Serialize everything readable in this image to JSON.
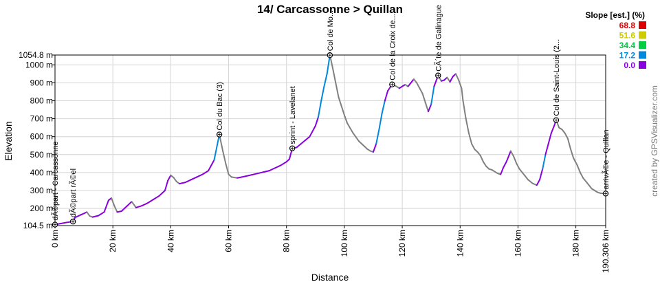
{
  "chart_data": {
    "type": "area",
    "title": "14/ Carcassonne > Quillan",
    "xlabel": "Distance",
    "ylabel": "Elevation",
    "xlim": [
      0,
      190.306
    ],
    "ylim": [
      104.5,
      1054.8
    ],
    "x_ticks": [
      {
        "value": 0,
        "label": "0 km"
      },
      {
        "value": 20,
        "label": "20 km"
      },
      {
        "value": 40,
        "label": "40 km"
      },
      {
        "value": 60,
        "label": "60 km"
      },
      {
        "value": 80,
        "label": "80 km"
      },
      {
        "value": 100,
        "label": "100 km"
      },
      {
        "value": 120,
        "label": "120 km"
      },
      {
        "value": 140,
        "label": "140 km"
      },
      {
        "value": 160,
        "label": "160 km"
      },
      {
        "value": 180,
        "label": "180 km"
      },
      {
        "value": 190.306,
        "label": "190.306 km"
      }
    ],
    "y_ticks": [
      {
        "value": 104.5,
        "label": "104.5 m"
      },
      {
        "value": 200,
        "label": "200 m"
      },
      {
        "value": 300,
        "label": "300 m"
      },
      {
        "value": 400,
        "label": "400 m"
      },
      {
        "value": 500,
        "label": "500 m"
      },
      {
        "value": 600,
        "label": "600 m"
      },
      {
        "value": 700,
        "label": "700 m"
      },
      {
        "value": 800,
        "label": "800 m"
      },
      {
        "value": 900,
        "label": "900 m"
      },
      {
        "value": 1000,
        "label": "1000 m"
      },
      {
        "value": 1054.8,
        "label": "1054.8 m"
      }
    ],
    "grid": true,
    "legend": {
      "title": "Slope [est.] (%)",
      "position": "top-right",
      "entries": [
        {
          "label": "68.8",
          "color": "#dd0000"
        },
        {
          "label": "51.6",
          "color": "#cccc00"
        },
        {
          "label": "34.4",
          "color": "#00cc44"
        },
        {
          "label": "17.2",
          "color": "#0088dd"
        },
        {
          "label": "0.0",
          "color": "#8800dd"
        }
      ]
    },
    "waypoints": [
      {
        "x": 0.0,
        "y": 110,
        "label": "dÃ©part - Carcassonne"
      },
      {
        "x": 6.2,
        "y": 127,
        "label": "dÃ©part rÃ©el"
      },
      {
        "x": 56.8,
        "y": 612,
        "label": "Col du Bac (3)"
      },
      {
        "x": 82.0,
        "y": 535,
        "label": "sprint - Lavelanet"
      },
      {
        "x": 95.0,
        "y": 1054,
        "label": "Col de Mo..."
      },
      {
        "x": 116.5,
        "y": 891,
        "label": "Col de la Croix de..."
      },
      {
        "x": 132.4,
        "y": 941,
        "label": "CÃ´te de Galinague"
      },
      {
        "x": 173.2,
        "y": 692,
        "label": "Col de Saint-Louis (2..."
      },
      {
        "x": 190.306,
        "y": 283,
        "label": "arrivÃ©e - Quillan"
      }
    ],
    "series": [
      {
        "points": [
          [
            0,
            110
          ],
          [
            2,
            116
          ],
          [
            4,
            122
          ],
          [
            6,
            127
          ],
          [
            7,
            150
          ],
          [
            9,
            165
          ],
          [
            10,
            172
          ],
          [
            11,
            180
          ],
          [
            12,
            158
          ],
          [
            13,
            152
          ],
          [
            15,
            160
          ],
          [
            17,
            180
          ],
          [
            18.5,
            245
          ],
          [
            19.5,
            258
          ],
          [
            20.5,
            215
          ],
          [
            21.5,
            180
          ],
          [
            23,
            185
          ],
          [
            25,
            215
          ],
          [
            26.5,
            238
          ],
          [
            28,
            205
          ],
          [
            30,
            215
          ],
          [
            32,
            230
          ],
          [
            34,
            250
          ],
          [
            36,
            270
          ],
          [
            38,
            300
          ],
          [
            39,
            355
          ],
          [
            40,
            385
          ],
          [
            41,
            372
          ],
          [
            42,
            350
          ],
          [
            43,
            338
          ],
          [
            45,
            345
          ],
          [
            47,
            360
          ],
          [
            49,
            375
          ],
          [
            51,
            390
          ],
          [
            53,
            410
          ],
          [
            55,
            470
          ],
          [
            56.8,
            612
          ],
          [
            58,
            520
          ],
          [
            59,
            450
          ],
          [
            60,
            390
          ],
          [
            61,
            375
          ],
          [
            63,
            370
          ],
          [
            66,
            380
          ],
          [
            70,
            395
          ],
          [
            74,
            410
          ],
          [
            78,
            440
          ],
          [
            80,
            460
          ],
          [
            81,
            475
          ],
          [
            82,
            535
          ],
          [
            83.5,
            540
          ],
          [
            85,
            560
          ],
          [
            86.5,
            580
          ],
          [
            88,
            600
          ],
          [
            90,
            660
          ],
          [
            91,
            710
          ],
          [
            92,
            800
          ],
          [
            93,
            880
          ],
          [
            94,
            950
          ],
          [
            95,
            1054
          ],
          [
            96,
            980
          ],
          [
            97,
            900
          ],
          [
            98,
            820
          ],
          [
            99,
            770
          ],
          [
            100,
            720
          ],
          [
            101,
            675
          ],
          [
            103,
            620
          ],
          [
            105,
            575
          ],
          [
            107,
            545
          ],
          [
            108,
            530
          ],
          [
            109,
            520
          ],
          [
            110,
            515
          ],
          [
            111,
            560
          ],
          [
            112,
            640
          ],
          [
            113,
            730
          ],
          [
            114,
            800
          ],
          [
            115,
            855
          ],
          [
            116.5,
            891
          ],
          [
            118,
            880
          ],
          [
            119,
            870
          ],
          [
            121,
            890
          ],
          [
            122,
            880
          ],
          [
            123,
            900
          ],
          [
            124,
            920
          ],
          [
            125,
            900
          ],
          [
            126,
            870
          ],
          [
            127,
            840
          ],
          [
            128,
            790
          ],
          [
            129,
            740
          ],
          [
            130,
            780
          ],
          [
            131,
            880
          ],
          [
            132.4,
            941
          ],
          [
            133.5,
            910
          ],
          [
            134.5,
            915
          ],
          [
            135.5,
            930
          ],
          [
            136.5,
            905
          ],
          [
            137.5,
            935
          ],
          [
            138.5,
            950
          ],
          [
            139.5,
            915
          ],
          [
            140.5,
            870
          ],
          [
            141,
            800
          ],
          [
            142,
            700
          ],
          [
            143,
            620
          ],
          [
            144,
            560
          ],
          [
            145,
            530
          ],
          [
            146,
            515
          ],
          [
            147,
            495
          ],
          [
            148,
            460
          ],
          [
            149,
            435
          ],
          [
            150,
            420
          ],
          [
            151,
            415
          ],
          [
            152,
            405
          ],
          [
            153,
            395
          ],
          [
            154,
            390
          ],
          [
            155,
            430
          ],
          [
            156,
            460
          ],
          [
            157,
            500
          ],
          [
            157.5,
            520
          ],
          [
            158.5,
            490
          ],
          [
            159.5,
            450
          ],
          [
            160.5,
            420
          ],
          [
            161.5,
            400
          ],
          [
            162.5,
            380
          ],
          [
            163.5,
            360
          ],
          [
            165,
            340
          ],
          [
            166.5,
            330
          ],
          [
            167.5,
            360
          ],
          [
            168.5,
            420
          ],
          [
            169.5,
            500
          ],
          [
            170.5,
            560
          ],
          [
            171.5,
            620
          ],
          [
            172.5,
            660
          ],
          [
            173.2,
            692
          ],
          [
            174.2,
            650
          ],
          [
            175.2,
            640
          ],
          [
            176.2,
            620
          ],
          [
            177.2,
            590
          ],
          [
            178.2,
            530
          ],
          [
            179.2,
            480
          ],
          [
            180.5,
            440
          ],
          [
            181.5,
            400
          ],
          [
            182.5,
            370
          ],
          [
            183.5,
            350
          ],
          [
            184.5,
            330
          ],
          [
            185.5,
            310
          ],
          [
            186.5,
            300
          ],
          [
            187.5,
            290
          ],
          [
            188.5,
            285
          ],
          [
            189.5,
            283
          ],
          [
            190.306,
            283
          ]
        ],
        "segment_colors": [
          "#8800dd",
          "#0088dd",
          "#808080"
        ]
      }
    ],
    "credit": "created by GPSVisualizer.com"
  }
}
